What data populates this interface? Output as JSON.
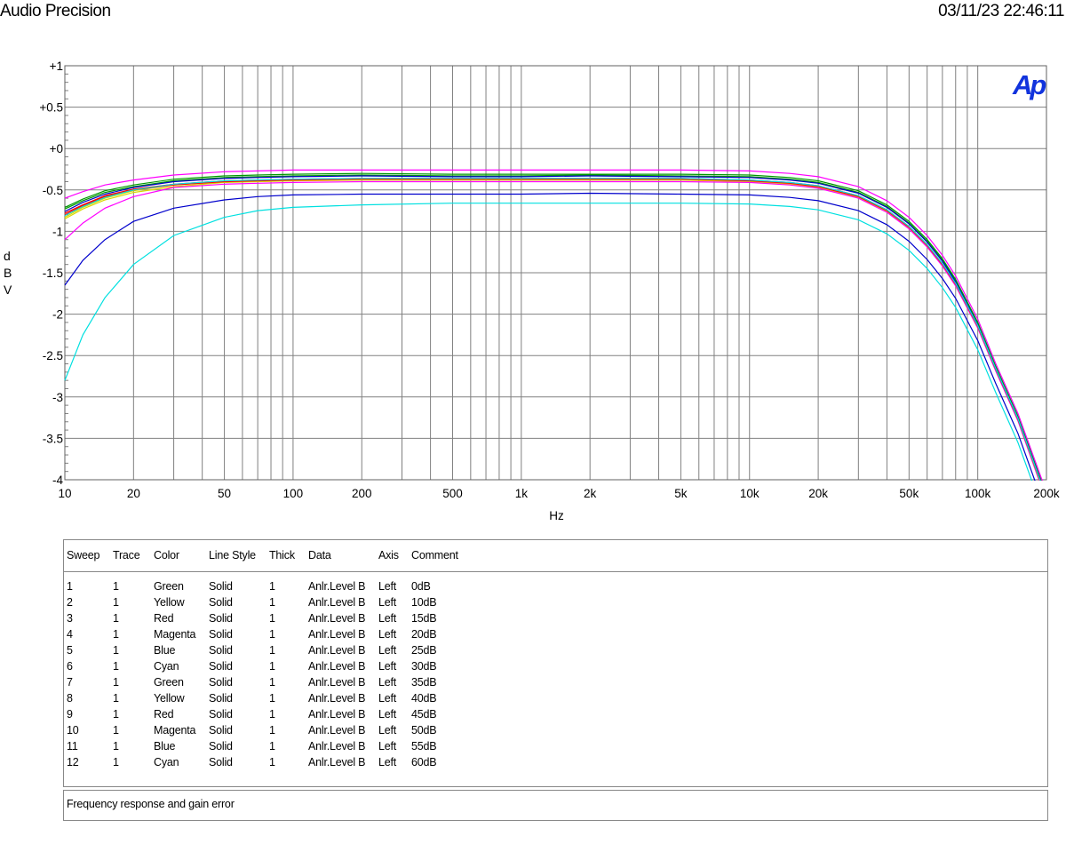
{
  "header": {
    "left_title": "Audio Precision",
    "timestamp": "03/11/23 22:46:11"
  },
  "chart_data": {
    "type": "line",
    "xscale": "log",
    "xlim": [
      10,
      200000
    ],
    "ylim": [
      -4,
      1
    ],
    "xlabel": "Hz",
    "ylabel": "dBV",
    "logo_text": "Ap",
    "grid": true,
    "x_tick_labels": [
      {
        "v": 10,
        "t": "10"
      },
      {
        "v": 20,
        "t": "20"
      },
      {
        "v": 50,
        "t": "50"
      },
      {
        "v": 100,
        "t": "100"
      },
      {
        "v": 200,
        "t": "200"
      },
      {
        "v": 500,
        "t": "500"
      },
      {
        "v": 1000,
        "t": "1k"
      },
      {
        "v": 2000,
        "t": "2k"
      },
      {
        "v": 5000,
        "t": "5k"
      },
      {
        "v": 10000,
        "t": "10k"
      },
      {
        "v": 20000,
        "t": "20k"
      },
      {
        "v": 50000,
        "t": "50k"
      },
      {
        "v": 100000,
        "t": "100k"
      },
      {
        "v": 200000,
        "t": "200k"
      }
    ],
    "y_tick_labels": [
      {
        "v": 1,
        "t": "+1"
      },
      {
        "v": 0.5,
        "t": "+0.5"
      },
      {
        "v": 0,
        "t": "+0"
      },
      {
        "v": -0.5,
        "t": "-0.5"
      },
      {
        "v": -1,
        "t": "-1"
      },
      {
        "v": -1.5,
        "t": "-1.5"
      },
      {
        "v": -2,
        "t": "-2"
      },
      {
        "v": -2.5,
        "t": "-2.5"
      },
      {
        "v": -3,
        "t": "-3"
      },
      {
        "v": -3.5,
        "t": "-3.5"
      },
      {
        "v": -4,
        "t": "-4"
      }
    ],
    "series_x": [
      10,
      12,
      15,
      20,
      30,
      50,
      70,
      100,
      200,
      500,
      1000,
      2000,
      5000,
      10000,
      15000,
      20000,
      30000,
      40000,
      50000,
      60000,
      70000,
      80000,
      100000,
      120000,
      150000,
      200000
    ],
    "series": [
      {
        "color": "#009900",
        "values": [
          -0.73,
          -0.63,
          -0.53,
          -0.46,
          -0.39,
          -0.35,
          -0.34,
          -0.33,
          -0.32,
          -0.33,
          -0.33,
          -0.32,
          -0.33,
          -0.34,
          -0.37,
          -0.41,
          -0.53,
          -0.7,
          -0.9,
          -1.12,
          -1.35,
          -1.6,
          -2.12,
          -2.65,
          -3.25,
          -4.2
        ]
      },
      {
        "color": "#d8d800",
        "values": [
          -0.85,
          -0.73,
          -0.62,
          -0.53,
          -0.46,
          -0.41,
          -0.4,
          -0.39,
          -0.38,
          -0.38,
          -0.38,
          -0.38,
          -0.38,
          -0.4,
          -0.43,
          -0.47,
          -0.59,
          -0.76,
          -0.96,
          -1.18,
          -1.41,
          -1.65,
          -2.16,
          -2.68,
          -3.28,
          -4.25
        ]
      },
      {
        "color": "#ff0000",
        "values": [
          -0.78,
          -0.68,
          -0.57,
          -0.49,
          -0.43,
          -0.39,
          -0.38,
          -0.37,
          -0.36,
          -0.36,
          -0.36,
          -0.36,
          -0.36,
          -0.38,
          -0.41,
          -0.45,
          -0.57,
          -0.74,
          -0.94,
          -1.16,
          -1.39,
          -1.63,
          -2.14,
          -2.66,
          -3.26,
          -4.22
        ]
      },
      {
        "color": "#ff00ff",
        "values": [
          -1.1,
          -0.9,
          -0.72,
          -0.58,
          -0.47,
          -0.43,
          -0.42,
          -0.41,
          -0.4,
          -0.4,
          -0.4,
          -0.4,
          -0.4,
          -0.41,
          -0.44,
          -0.48,
          -0.6,
          -0.77,
          -0.97,
          -1.19,
          -1.42,
          -1.66,
          -2.17,
          -2.69,
          -3.29,
          -4.26
        ]
      },
      {
        "color": "#0000cc",
        "values": [
          -1.65,
          -1.35,
          -1.1,
          -0.88,
          -0.72,
          -0.62,
          -0.58,
          -0.56,
          -0.55,
          -0.55,
          -0.55,
          -0.54,
          -0.55,
          -0.56,
          -0.59,
          -0.63,
          -0.75,
          -0.92,
          -1.12,
          -1.34,
          -1.57,
          -1.81,
          -2.32,
          -2.84,
          -3.44,
          -4.4
        ]
      },
      {
        "color": "#00e0e0",
        "values": [
          -2.8,
          -2.25,
          -1.8,
          -1.4,
          -1.05,
          -0.83,
          -0.75,
          -0.71,
          -0.68,
          -0.66,
          -0.66,
          -0.66,
          -0.66,
          -0.67,
          -0.7,
          -0.74,
          -0.86,
          -1.03,
          -1.23,
          -1.45,
          -1.68,
          -1.92,
          -2.43,
          -2.95,
          -3.55,
          -4.5
        ]
      },
      {
        "color": "#009900",
        "values": [
          -0.71,
          -0.61,
          -0.51,
          -0.44,
          -0.37,
          -0.33,
          -0.32,
          -0.31,
          -0.3,
          -0.31,
          -0.31,
          -0.31,
          -0.31,
          -0.32,
          -0.35,
          -0.39,
          -0.51,
          -0.68,
          -0.88,
          -1.1,
          -1.33,
          -1.58,
          -2.1,
          -2.63,
          -3.23,
          -4.18
        ]
      },
      {
        "color": "#d8d800",
        "values": [
          -0.83,
          -0.71,
          -0.6,
          -0.51,
          -0.44,
          -0.4,
          -0.39,
          -0.38,
          -0.37,
          -0.37,
          -0.37,
          -0.37,
          -0.37,
          -0.39,
          -0.42,
          -0.46,
          -0.58,
          -0.75,
          -0.95,
          -1.17,
          -1.4,
          -1.64,
          -2.15,
          -2.67,
          -3.27,
          -4.24
        ]
      },
      {
        "color": "#ff0000",
        "values": [
          -0.8,
          -0.69,
          -0.58,
          -0.5,
          -0.44,
          -0.4,
          -0.39,
          -0.38,
          -0.37,
          -0.37,
          -0.37,
          -0.37,
          -0.37,
          -0.39,
          -0.42,
          -0.46,
          -0.58,
          -0.75,
          -0.95,
          -1.17,
          -1.4,
          -1.64,
          -2.15,
          -2.67,
          -3.27,
          -4.23
        ]
      },
      {
        "color": "#ff00ff",
        "values": [
          -0.6,
          -0.52,
          -0.44,
          -0.38,
          -0.32,
          -0.28,
          -0.27,
          -0.26,
          -0.26,
          -0.26,
          -0.26,
          -0.26,
          -0.26,
          -0.27,
          -0.3,
          -0.34,
          -0.46,
          -0.63,
          -0.83,
          -1.05,
          -1.29,
          -1.54,
          -2.06,
          -2.6,
          -3.2,
          -4.15
        ]
      },
      {
        "color": "#0000cc",
        "values": [
          -0.76,
          -0.65,
          -0.55,
          -0.47,
          -0.4,
          -0.36,
          -0.35,
          -0.34,
          -0.33,
          -0.34,
          -0.34,
          -0.33,
          -0.34,
          -0.35,
          -0.38,
          -0.42,
          -0.54,
          -0.71,
          -0.91,
          -1.13,
          -1.36,
          -1.61,
          -2.13,
          -2.66,
          -3.26,
          -4.21
        ]
      },
      {
        "color": "#00e0e0",
        "values": [
          -0.81,
          -0.7,
          -0.59,
          -0.5,
          -0.43,
          -0.39,
          -0.38,
          -0.37,
          -0.36,
          -0.36,
          -0.36,
          -0.36,
          -0.36,
          -0.38,
          -0.41,
          -0.45,
          -0.57,
          -0.74,
          -0.94,
          -1.16,
          -1.39,
          -1.63,
          -2.14,
          -2.66,
          -3.26,
          -4.22
        ]
      }
    ]
  },
  "legend_table": {
    "columns": [
      "Sweep",
      "Trace",
      "Color",
      "Line Style",
      "Thick",
      "Data",
      "Axis",
      "Comment"
    ],
    "rows": [
      [
        "1",
        "1",
        "Green",
        "Solid",
        "1",
        "Anlr.Level B",
        "Left",
        "0dB"
      ],
      [
        "2",
        "1",
        "Yellow",
        "Solid",
        "1",
        "Anlr.Level B",
        "Left",
        "10dB"
      ],
      [
        "3",
        "1",
        "Red",
        "Solid",
        "1",
        "Anlr.Level B",
        "Left",
        "15dB"
      ],
      [
        "4",
        "1",
        "Magenta",
        "Solid",
        "1",
        "Anlr.Level B",
        "Left",
        "20dB"
      ],
      [
        "5",
        "1",
        "Blue",
        "Solid",
        "1",
        "Anlr.Level B",
        "Left",
        "25dB"
      ],
      [
        "6",
        "1",
        "Cyan",
        "Solid",
        "1",
        "Anlr.Level B",
        "Left",
        "30dB"
      ],
      [
        "7",
        "1",
        "Green",
        "Solid",
        "1",
        "Anlr.Level B",
        "Left",
        "35dB"
      ],
      [
        "8",
        "1",
        "Yellow",
        "Solid",
        "1",
        "Anlr.Level B",
        "Left",
        "40dB"
      ],
      [
        "9",
        "1",
        "Red",
        "Solid",
        "1",
        "Anlr.Level B",
        "Left",
        "45dB"
      ],
      [
        "10",
        "1",
        "Magenta",
        "Solid",
        "1",
        "Anlr.Level B",
        "Left",
        "50dB"
      ],
      [
        "11",
        "1",
        "Blue",
        "Solid",
        "1",
        "Anlr.Level B",
        "Left",
        "55dB"
      ],
      [
        "12",
        "1",
        "Cyan",
        "Solid",
        "1",
        "Anlr.Level B",
        "Left",
        "60dB"
      ]
    ]
  },
  "comment_box": {
    "text": "Frequency response and gain error"
  }
}
